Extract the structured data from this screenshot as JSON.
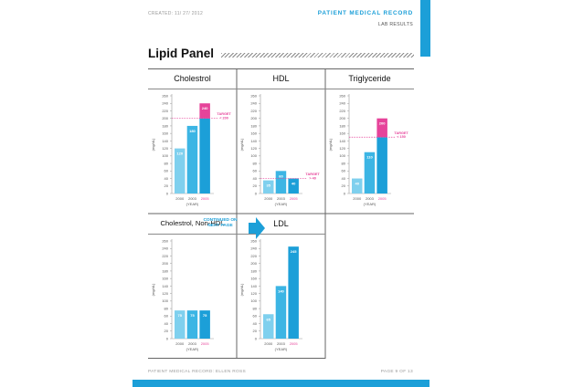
{
  "header": {
    "created": "CREATED: 11/ 27/ 2012",
    "record_title": "PATIENT MEDICAL RECORD",
    "subtitle": "LAB RESULTS"
  },
  "section_title": "Lipid Panel",
  "footer": {
    "left": "PATIENT MEDICAL RECORD: ELLEN ROSS",
    "right": "PAGE 9 OF 13"
  },
  "continued": {
    "line1": "CONTINUED ON",
    "line2": "NEXT PAGE"
  },
  "colors": {
    "light_blue": "#7fd0ee",
    "mid_blue": "#3cb5e4",
    "dark_blue": "#1c9fd8",
    "pink": "#e6439a"
  },
  "chart_data": [
    {
      "type": "bar",
      "title": "Cholestrol",
      "categories": [
        "2000",
        "2003",
        "2005"
      ],
      "values": [
        120,
        180,
        240
      ],
      "ylabel": "(mg/dL)",
      "xlabel": "(YEAR)",
      "ylim": [
        0,
        260
      ],
      "yticks": [
        0,
        20,
        40,
        60,
        80,
        100,
        120,
        140,
        160,
        180,
        200,
        220,
        240,
        260
      ],
      "target": {
        "value": 200,
        "label_line1": "TARGET",
        "label_line2": "< 200",
        "direction": "below"
      }
    },
    {
      "type": "bar",
      "title": "HDL",
      "categories": [
        "2000",
        "2003",
        "2005"
      ],
      "values": [
        35,
        60,
        40
      ],
      "ylabel": "(mg/dL)",
      "xlabel": "(YEAR)",
      "ylim": [
        0,
        260
      ],
      "yticks": [
        0,
        20,
        40,
        60,
        80,
        100,
        120,
        140,
        160,
        180,
        200,
        220,
        240,
        260
      ],
      "target": {
        "value": 40,
        "label_line1": "TARGET",
        "label_line2": "> 40",
        "direction": "above"
      }
    },
    {
      "type": "bar",
      "title": "Triglyceride",
      "categories": [
        "2000",
        "2003",
        "2005"
      ],
      "values": [
        40,
        110,
        200
      ],
      "ylabel": "(mg/dL)",
      "xlabel": "(YEAR)",
      "ylim": [
        0,
        260
      ],
      "yticks": [
        0,
        20,
        40,
        60,
        80,
        100,
        120,
        140,
        160,
        180,
        200,
        220,
        240,
        260
      ],
      "target": {
        "value": 150,
        "label_line1": "TARGET",
        "label_line2": "< 150",
        "direction": "below"
      }
    },
    {
      "type": "bar",
      "title": "Cholestrol, Non-HDL",
      "categories": [
        "2000",
        "2003",
        "2005"
      ],
      "values": [
        75,
        75,
        75
      ],
      "ylabel": "(mg/dL)",
      "xlabel": "(YEAR)",
      "ylim": [
        0,
        260
      ],
      "yticks": [
        0,
        20,
        40,
        60,
        80,
        100,
        120,
        140,
        160,
        180,
        200,
        220,
        240,
        260
      ]
    },
    {
      "type": "bar",
      "title": "LDL",
      "categories": [
        "2000",
        "2003",
        "2005"
      ],
      "values": [
        65,
        140,
        245
      ],
      "ylabel": "(mg/dL)",
      "xlabel": "(YEAR)",
      "ylim": [
        0,
        260
      ],
      "yticks": [
        0,
        20,
        40,
        60,
        80,
        100,
        120,
        140,
        160,
        180,
        200,
        220,
        240,
        260
      ]
    }
  ]
}
